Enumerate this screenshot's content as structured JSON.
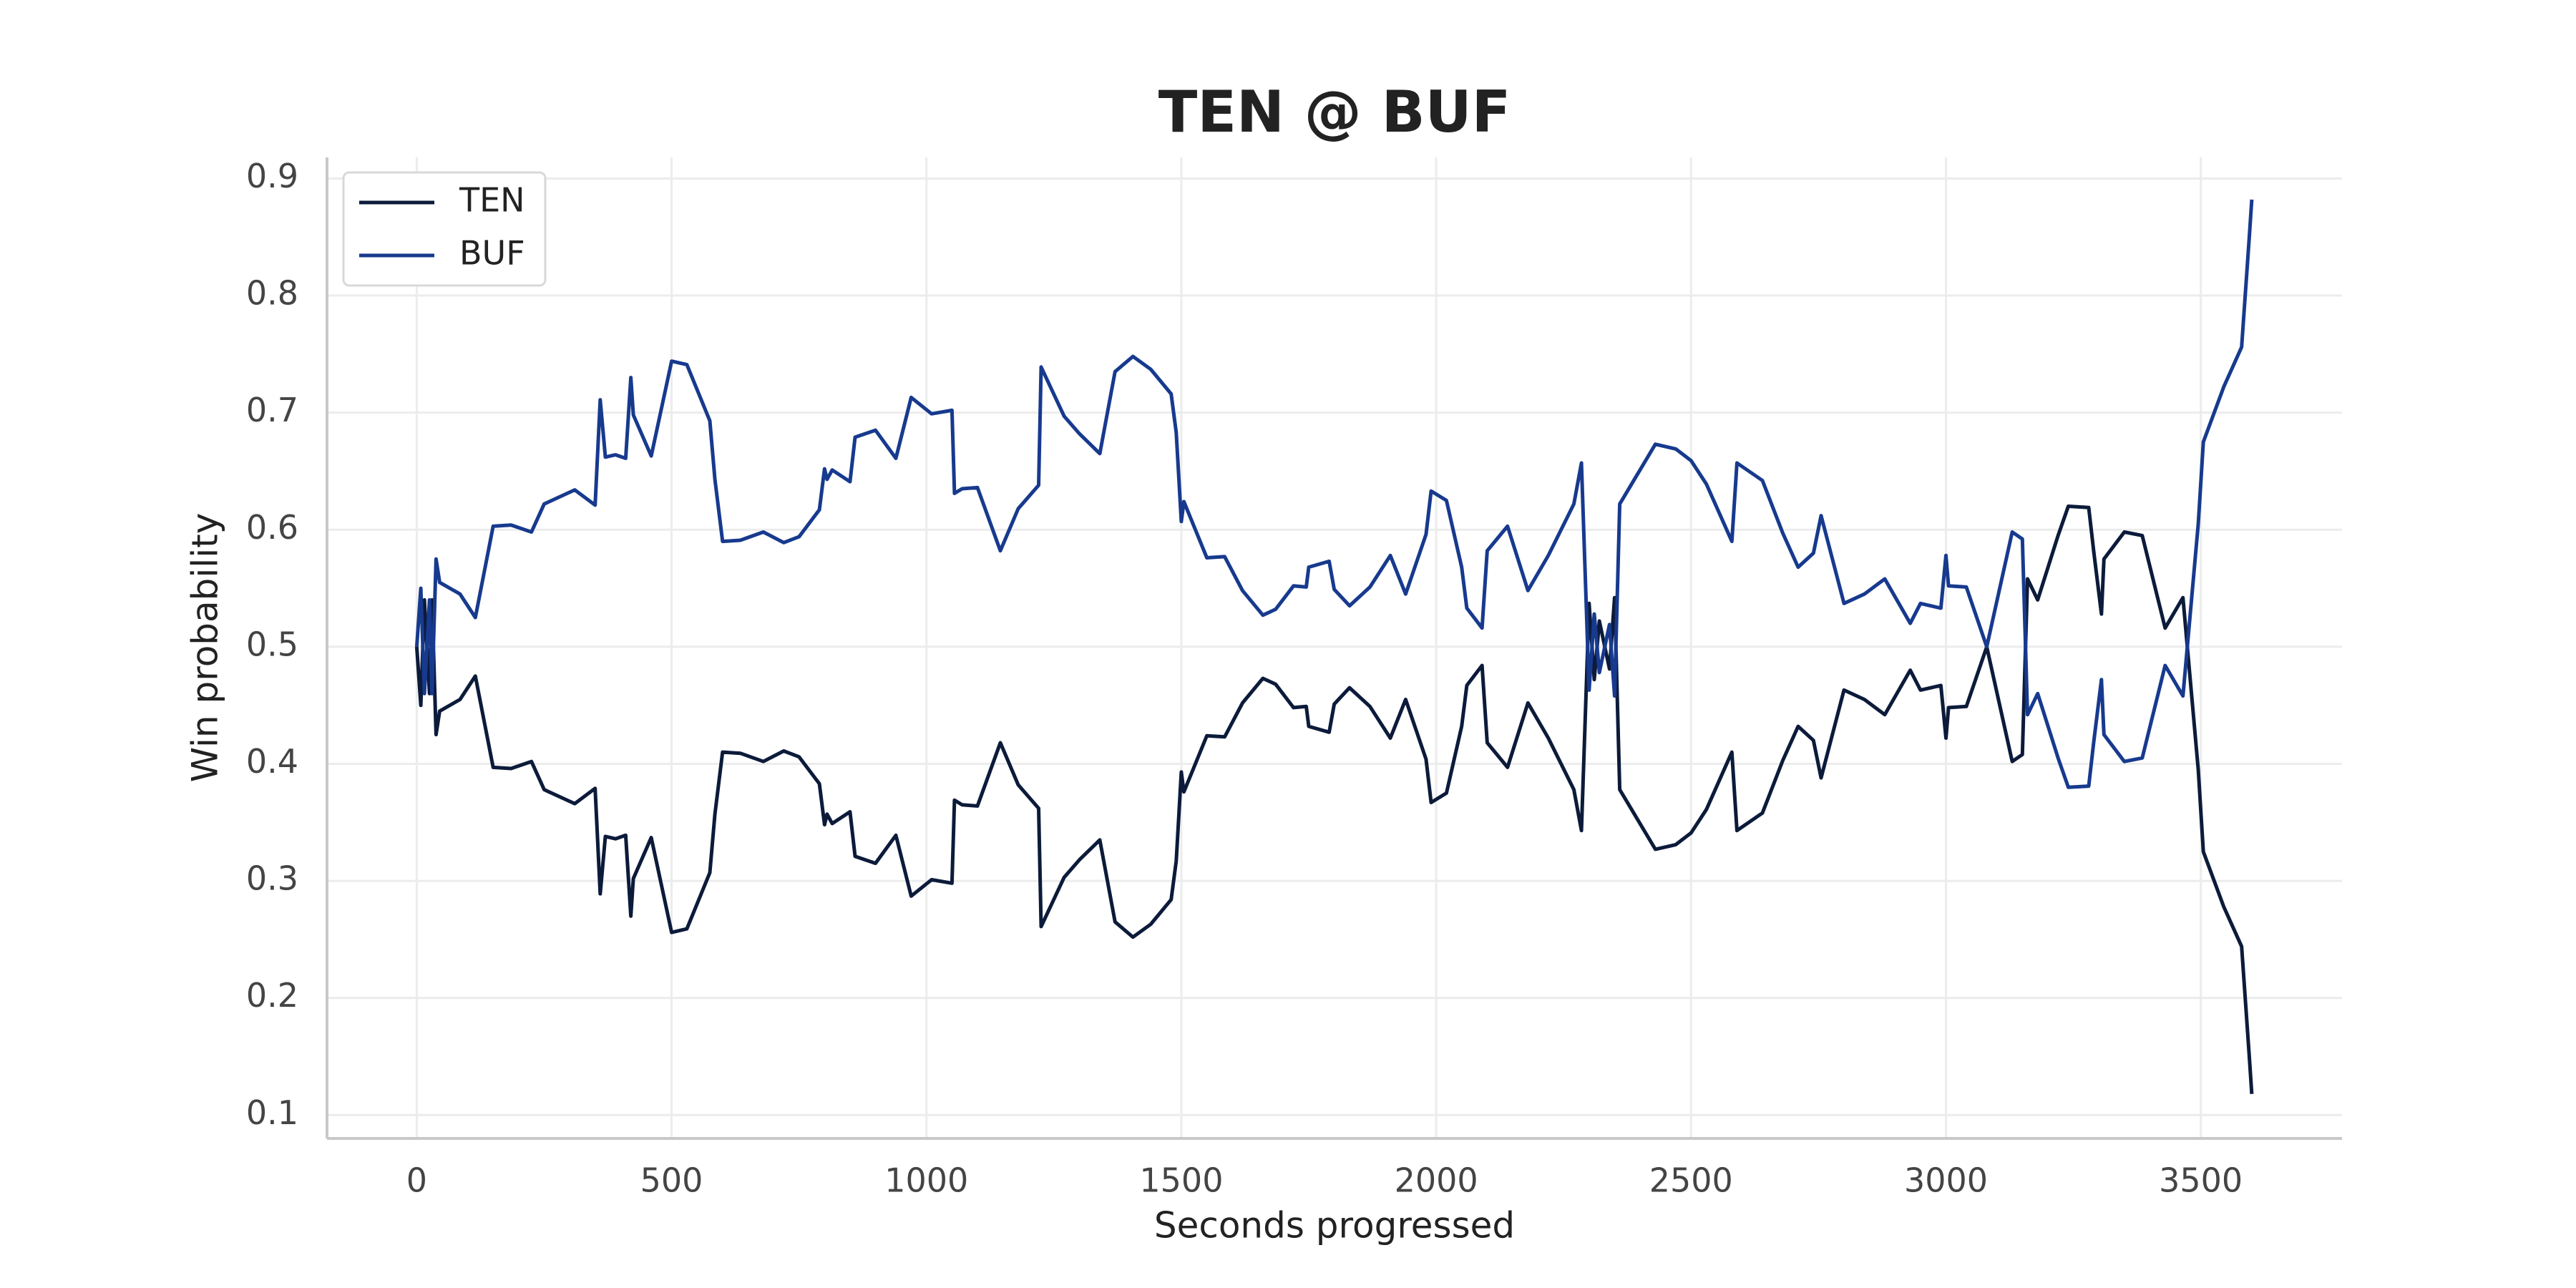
{
  "chart_data": {
    "type": "line",
    "title": "TEN @ BUF",
    "xlabel": "Seconds progressed",
    "ylabel": "Win probability",
    "x": [
      0,
      8,
      15,
      25,
      30,
      38,
      45,
      85,
      115,
      150,
      185,
      225,
      250,
      310,
      350,
      360,
      370,
      390,
      410,
      420,
      425,
      460,
      500,
      530,
      575,
      585,
      600,
      635,
      680,
      720,
      750,
      790,
      800,
      805,
      815,
      850,
      860,
      900,
      940,
      970,
      1010,
      1050,
      1055,
      1070,
      1100,
      1145,
      1180,
      1220,
      1225,
      1270,
      1300,
      1340,
      1370,
      1405,
      1440,
      1480,
      1490,
      1500,
      1505,
      1550,
      1585,
      1620,
      1660,
      1685,
      1720,
      1745,
      1750,
      1790,
      1800,
      1830,
      1870,
      1910,
      1940,
      1980,
      1990,
      2020,
      2050,
      2060,
      2090,
      2100,
      2140,
      2180,
      2220,
      2270,
      2285,
      2300,
      2310,
      2320,
      2340,
      2350,
      2360,
      2430,
      2470,
      2500,
      2530,
      2580,
      2590,
      2640,
      2680,
      2710,
      2740,
      2755,
      2800,
      2840,
      2880,
      2930,
      2950,
      2990,
      3000,
      3005,
      3040,
      3080,
      3130,
      3150,
      3160,
      3180,
      3220,
      3240,
      3280,
      3290,
      3305,
      3310,
      3350,
      3385,
      3430,
      3465,
      3495,
      3505,
      3545,
      3580,
      3595,
      3600
    ],
    "series": [
      {
        "name": "TEN",
        "color": "#0c1b3a",
        "values": [
          0.5,
          0.45,
          0.54,
          0.46,
          0.54,
          0.425,
          0.445,
          0.455,
          0.475,
          0.397,
          0.396,
          0.402,
          0.378,
          0.366,
          0.379,
          0.289,
          0.338,
          0.336,
          0.339,
          0.27,
          0.302,
          0.337,
          0.256,
          0.259,
          0.307,
          0.357,
          0.41,
          0.409,
          0.402,
          0.411,
          0.406,
          0.383,
          0.348,
          0.357,
          0.349,
          0.359,
          0.321,
          0.315,
          0.339,
          0.287,
          0.301,
          0.298,
          0.369,
          0.365,
          0.364,
          0.418,
          0.382,
          0.362,
          0.261,
          0.303,
          0.318,
          0.335,
          0.265,
          0.252,
          0.263,
          0.284,
          0.317,
          0.393,
          0.376,
          0.424,
          0.423,
          0.452,
          0.473,
          0.468,
          0.448,
          0.449,
          0.432,
          0.427,
          0.451,
          0.465,
          0.449,
          0.422,
          0.455,
          0.404,
          0.367,
          0.375,
          0.432,
          0.467,
          0.484,
          0.418,
          0.397,
          0.452,
          0.422,
          0.378,
          0.343,
          0.537,
          0.472,
          0.522,
          0.481,
          0.542,
          0.378,
          0.327,
          0.331,
          0.341,
          0.361,
          0.41,
          0.343,
          0.358,
          0.403,
          0.432,
          0.42,
          0.388,
          0.463,
          0.455,
          0.442,
          0.48,
          0.463,
          0.467,
          0.422,
          0.448,
          0.449,
          0.5,
          0.402,
          0.408,
          0.558,
          0.54,
          0.595,
          0.62,
          0.619,
          0.581,
          0.528,
          0.575,
          0.598,
          0.595,
          0.516,
          0.542,
          0.395,
          0.325,
          0.278,
          0.244,
          0.151,
          0.118
        ]
      },
      {
        "name": "BUF",
        "color": "#173a8e",
        "values": [
          0.5,
          0.55,
          0.46,
          0.54,
          0.46,
          0.575,
          0.555,
          0.545,
          0.525,
          0.603,
          0.604,
          0.598,
          0.622,
          0.634,
          0.621,
          0.711,
          0.662,
          0.664,
          0.661,
          0.73,
          0.698,
          0.663,
          0.744,
          0.741,
          0.693,
          0.643,
          0.59,
          0.591,
          0.598,
          0.589,
          0.594,
          0.617,
          0.652,
          0.643,
          0.651,
          0.641,
          0.679,
          0.685,
          0.661,
          0.713,
          0.699,
          0.702,
          0.631,
          0.635,
          0.636,
          0.582,
          0.618,
          0.638,
          0.739,
          0.697,
          0.682,
          0.665,
          0.735,
          0.748,
          0.737,
          0.716,
          0.683,
          0.607,
          0.624,
          0.576,
          0.577,
          0.548,
          0.527,
          0.532,
          0.552,
          0.551,
          0.568,
          0.573,
          0.549,
          0.535,
          0.551,
          0.578,
          0.545,
          0.596,
          0.633,
          0.625,
          0.568,
          0.533,
          0.516,
          0.582,
          0.603,
          0.548,
          0.578,
          0.622,
          0.657,
          0.463,
          0.528,
          0.478,
          0.519,
          0.458,
          0.622,
          0.673,
          0.669,
          0.659,
          0.639,
          0.59,
          0.657,
          0.642,
          0.597,
          0.568,
          0.58,
          0.612,
          0.537,
          0.545,
          0.558,
          0.52,
          0.537,
          0.533,
          0.578,
          0.552,
          0.551,
          0.5,
          0.598,
          0.592,
          0.442,
          0.46,
          0.405,
          0.38,
          0.381,
          0.419,
          0.472,
          0.425,
          0.402,
          0.405,
          0.484,
          0.458,
          0.605,
          0.675,
          0.722,
          0.756,
          0.849,
          0.882
        ]
      }
    ],
    "xlim": [
      -176,
      3777
    ],
    "xticks": [
      0,
      500,
      1000,
      1500,
      2000,
      2500,
      3000,
      3500
    ],
    "ylim": [
      0.08,
      0.918
    ],
    "yticks": [
      0.1,
      0.2,
      0.3,
      0.4,
      0.5,
      0.6,
      0.7,
      0.8,
      0.9
    ],
    "grid": true,
    "legend": "upper left"
  }
}
